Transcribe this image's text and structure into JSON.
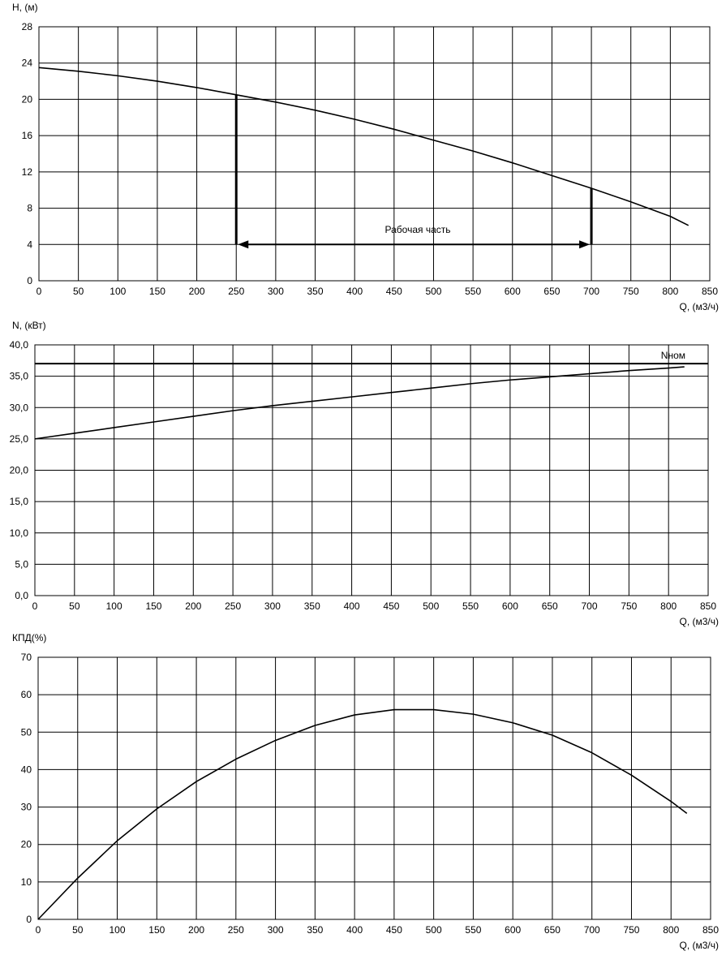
{
  "chart_data": [
    {
      "type": "line",
      "ylabel": "H, (м)",
      "xlabel": "Q, (м3/ч)",
      "xlim": [
        0,
        850
      ],
      "ylim": [
        0,
        28
      ],
      "xticks": [
        0,
        50,
        100,
        150,
        200,
        250,
        300,
        350,
        400,
        450,
        500,
        550,
        600,
        650,
        700,
        750,
        800,
        850
      ],
      "xtick_labels": [
        "0",
        "50",
        "100",
        "150",
        "200",
        "250",
        "300",
        "350",
        "400",
        "450",
        "500",
        "550",
        "600",
        "650",
        "700",
        "750",
        "800",
        "850"
      ],
      "yticks": [
        0,
        4,
        8,
        12,
        16,
        20,
        24,
        28
      ],
      "ytick_labels": [
        "0",
        "4",
        "8",
        "12",
        "16",
        "20",
        "24",
        "28"
      ],
      "grid": true,
      "series": [
        {
          "x": [
            0,
            50,
            100,
            150,
            200,
            250,
            300,
            350,
            400,
            450,
            500,
            550,
            600,
            650,
            700,
            750,
            800,
            823
          ],
          "y": [
            23.5,
            23.1,
            22.6,
            22.0,
            21.3,
            20.5,
            19.7,
            18.8,
            17.8,
            16.7,
            15.5,
            14.3,
            13.0,
            11.6,
            10.2,
            8.7,
            7.1,
            6.1
          ]
        }
      ],
      "annotation": {
        "text": "Рабочая часть",
        "x_start": 250,
        "x_end": 700,
        "y": 4,
        "x_label": 480,
        "y_label": 5.3,
        "vline_left_top": 20.5,
        "vline_right_top": 10.2
      }
    },
    {
      "type": "line",
      "ylabel": "N, (кВт)",
      "xlabel": "Q, (м3/ч)",
      "xlim": [
        0,
        850
      ],
      "ylim": [
        0,
        40
      ],
      "xticks": [
        0,
        50,
        100,
        150,
        200,
        250,
        300,
        350,
        400,
        450,
        500,
        550,
        600,
        650,
        700,
        750,
        800,
        850
      ],
      "xtick_labels": [
        "0",
        "50",
        "100",
        "150",
        "200",
        "250",
        "300",
        "350",
        "400",
        "450",
        "500",
        "550",
        "600",
        "650",
        "700",
        "750",
        "800",
        "850"
      ],
      "yticks": [
        0,
        5,
        10,
        15,
        20,
        25,
        30,
        35,
        40
      ],
      "ytick_labels": [
        "0,0",
        "5,0",
        "10,0",
        "15,0",
        "20,0",
        "25,0",
        "30,0",
        "35,0",
        "40,0"
      ],
      "grid": true,
      "series": [
        {
          "x": [
            0,
            50,
            100,
            150,
            200,
            250,
            300,
            350,
            400,
            450,
            500,
            550,
            600,
            650,
            700,
            750,
            800,
            820
          ],
          "y": [
            25.0,
            25.9,
            26.8,
            27.7,
            28.6,
            29.5,
            30.3,
            31.0,
            31.7,
            32.4,
            33.1,
            33.8,
            34.4,
            34.9,
            35.4,
            35.9,
            36.3,
            36.5
          ]
        }
      ],
      "reference_line": {
        "name": "Nном",
        "y": 37.0
      }
    },
    {
      "type": "line",
      "ylabel": "КПД(%)",
      "xlabel": "Q, (м3/ч)",
      "xlim": [
        0,
        850
      ],
      "ylim": [
        0,
        70
      ],
      "xticks": [
        0,
        50,
        100,
        150,
        200,
        250,
        300,
        350,
        400,
        450,
        500,
        550,
        600,
        650,
        700,
        750,
        800,
        850
      ],
      "xtick_labels": [
        "0",
        "50",
        "100",
        "150",
        "200",
        "250",
        "300",
        "350",
        "400",
        "450",
        "500",
        "550",
        "600",
        "650",
        "700",
        "750",
        "800",
        "850"
      ],
      "yticks": [
        0,
        10,
        20,
        30,
        40,
        50,
        60,
        70
      ],
      "ytick_labels": [
        "0",
        "10",
        "20",
        "30",
        "40",
        "50",
        "60",
        "70"
      ],
      "grid": true,
      "series": [
        {
          "x": [
            0,
            50,
            100,
            150,
            200,
            250,
            300,
            350,
            400,
            450,
            500,
            550,
            600,
            650,
            700,
            750,
            800,
            820
          ],
          "y": [
            0,
            11.0,
            21.0,
            29.5,
            36.8,
            42.8,
            47.8,
            51.8,
            54.6,
            56.0,
            56.0,
            54.8,
            52.5,
            49.2,
            44.5,
            38.5,
            31.5,
            28.3
          ]
        }
      ]
    }
  ]
}
